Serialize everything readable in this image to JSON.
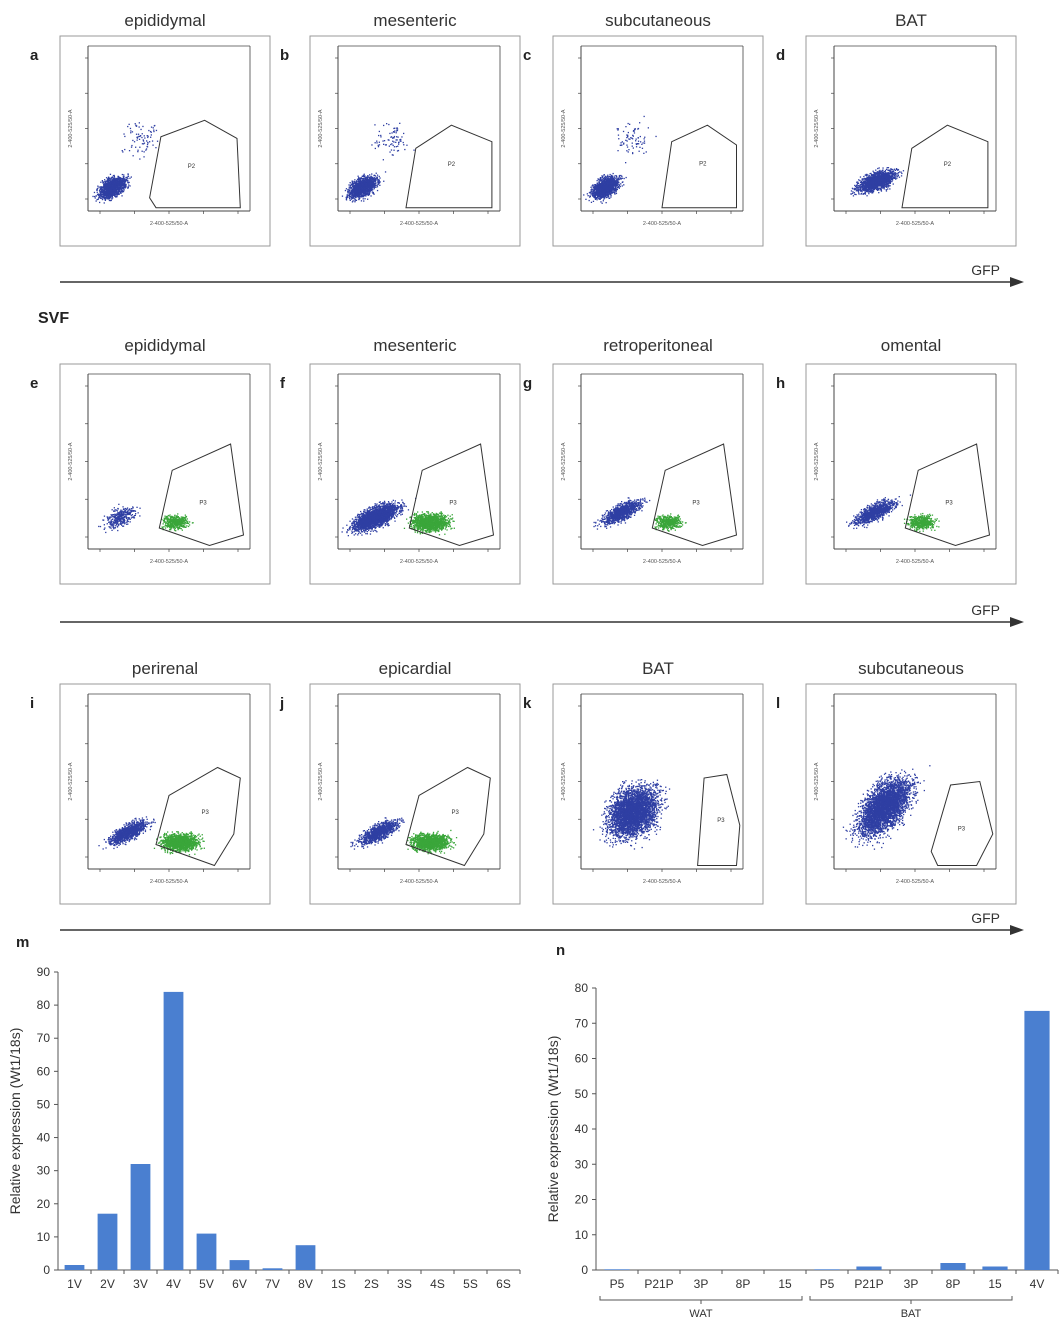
{
  "figure": {
    "section_label": "SVF",
    "gfp_label": "GFP",
    "panel_titles_row1": [
      "epididymal",
      "mesenteric",
      "subcutaneous",
      "BAT"
    ],
    "panel_titles_row2": [
      "epididymal",
      "mesenteric",
      "retroperitoneal",
      "omental"
    ],
    "panel_titles_row3": [
      "perirenal",
      "epicardial",
      "BAT",
      "subcutaneous"
    ],
    "panel_letters": [
      "a",
      "b",
      "c",
      "d",
      "e",
      "f",
      "g",
      "h",
      "i",
      "j",
      "k",
      "l",
      "m",
      "n"
    ],
    "axis_tick_text": "2-400-525/50-A",
    "gate_labels": [
      "P2",
      "P2",
      "P2",
      "P2",
      "P3",
      "P3",
      "P3",
      "P3",
      "P3",
      "P3",
      "P3",
      "P3"
    ],
    "colors": {
      "blue": "#2f3fa3",
      "green": "#3aa63a",
      "bar": "#4a7fd0",
      "axis": "#555555"
    }
  },
  "chart_data": [
    {
      "type": "bar",
      "panel": "m",
      "categories": [
        "1V",
        "2V",
        "3V",
        "4V",
        "5V",
        "6V",
        "7V",
        "8V",
        "1S",
        "2S",
        "3S",
        "4S",
        "5S",
        "6S"
      ],
      "values": [
        1.5,
        17,
        32,
        84,
        11,
        3,
        0.5,
        7.5,
        0,
        0,
        0,
        0,
        0,
        0
      ],
      "ylabel": "Relative expression (Wt1/18s)",
      "ylim": [
        0,
        90
      ],
      "yticks": [
        0,
        10,
        20,
        30,
        40,
        50,
        60,
        70,
        80,
        90
      ],
      "grid": false
    },
    {
      "type": "bar",
      "panel": "n",
      "categories": [
        "P5",
        "P21P",
        "3P",
        "8P",
        "15",
        "P5",
        "P21P",
        "3P",
        "8P",
        "15",
        "4V"
      ],
      "values": [
        0.2,
        0,
        0,
        0,
        0,
        0.2,
        1,
        0,
        2,
        1,
        73.5
      ],
      "ylabel": "Relative expression (Wt1/18s)",
      "ylim": [
        0,
        80
      ],
      "yticks": [
        0,
        10,
        20,
        30,
        40,
        50,
        60,
        70,
        80
      ],
      "groups": [
        {
          "label": "WAT",
          "from": 0,
          "to": 4
        },
        {
          "label": "BAT",
          "from": 5,
          "to": 9
        }
      ],
      "grid": false
    }
  ]
}
